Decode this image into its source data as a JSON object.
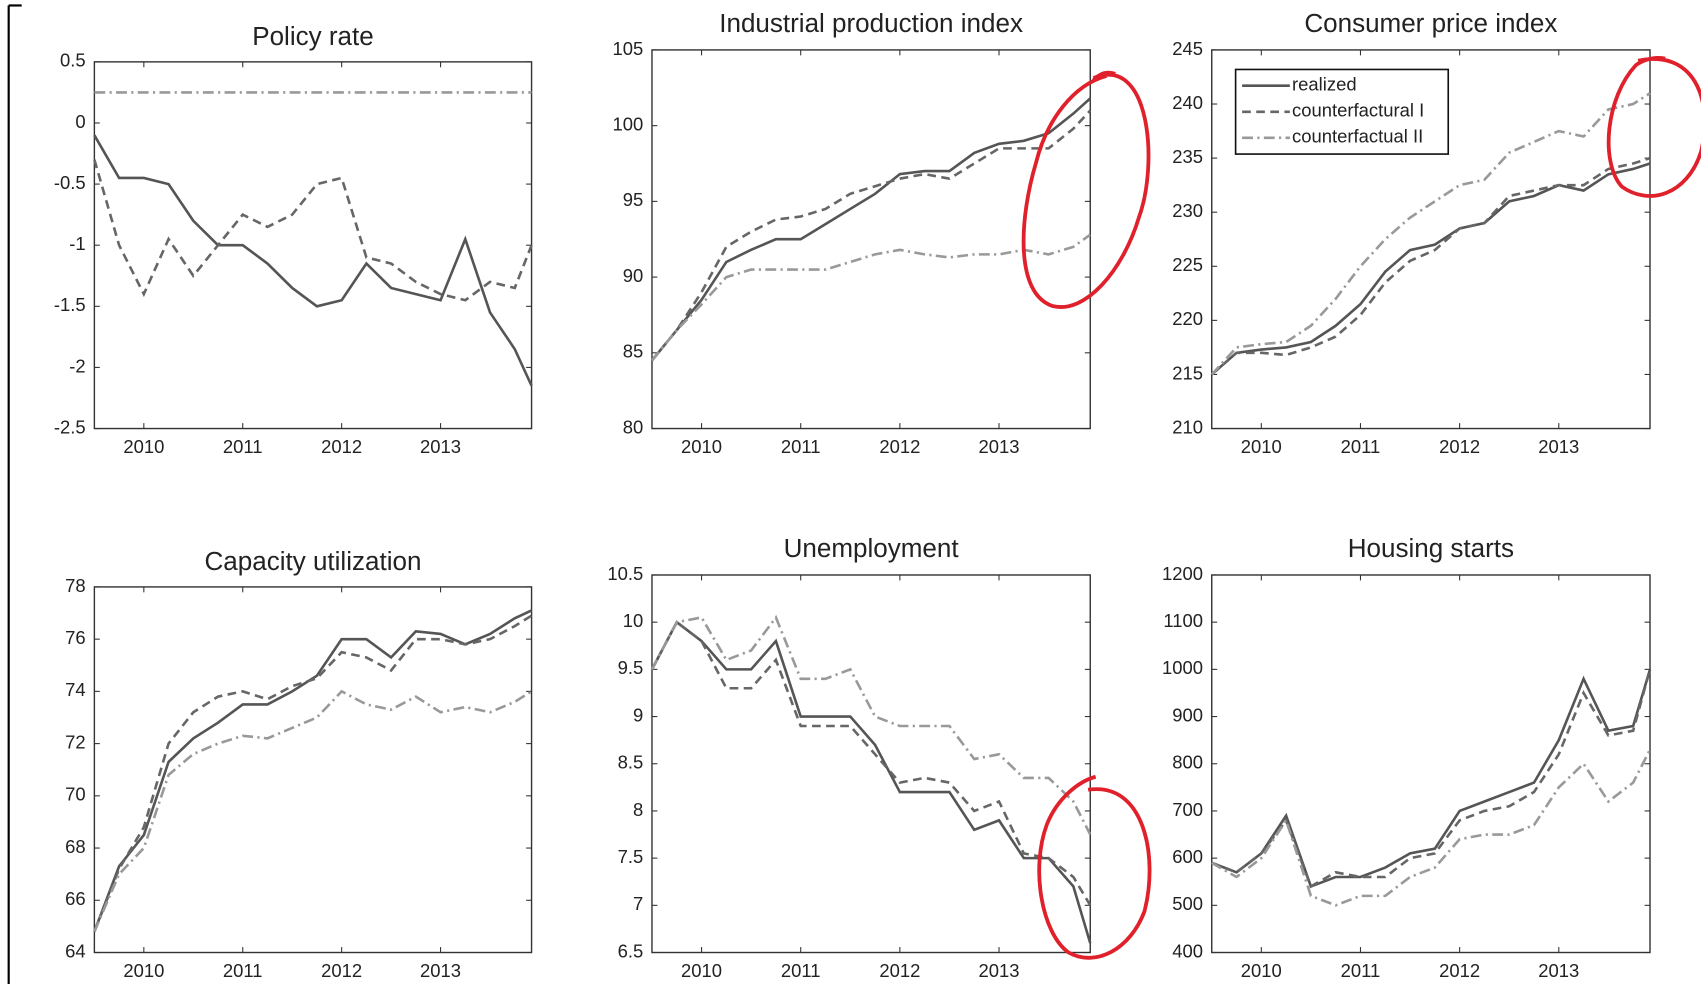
{
  "chart_data": [
    {
      "type": "line",
      "title": "Policy rate",
      "x": [
        2009.5,
        2009.75,
        2010,
        2010.25,
        2010.5,
        2010.75,
        2011,
        2011.25,
        2011.5,
        2011.75,
        2012,
        2012.25,
        2012.5,
        2012.75,
        2013,
        2013.25,
        2013.5,
        2013.75,
        2013.92
      ],
      "xlim": [
        2009.5,
        2013.92
      ],
      "xticks": [
        2010,
        2011,
        2012,
        2013
      ],
      "ylim": [
        -2.5,
        0.5
      ],
      "yticks": [
        -2.5,
        -2,
        -1.5,
        -1,
        -0.5,
        0,
        0.5
      ],
      "series": [
        {
          "color": "#555555",
          "dash": "solid",
          "values": [
            -0.1,
            -0.45,
            -0.45,
            -0.5,
            -0.8,
            -1.0,
            -1.0,
            -1.15,
            -1.35,
            -1.5,
            -1.45,
            -1.15,
            -1.35,
            -1.4,
            -1.45,
            -0.95,
            -1.55,
            -1.85,
            -2.15
          ]
        },
        {
          "color": "#666666",
          "dash": "dashed",
          "values": [
            -0.3,
            -1.0,
            -1.4,
            -0.95,
            -1.25,
            -1.0,
            -0.75,
            -0.85,
            -0.75,
            -0.5,
            -0.45,
            -1.1,
            -1.15,
            -1.3,
            -1.4,
            -1.45,
            -1.3,
            -1.35,
            -1.0
          ]
        },
        {
          "color": "#999999",
          "dash": "dashdot",
          "values": [
            0.25,
            0.25,
            0.25,
            0.25,
            0.25,
            0.25,
            0.25,
            0.25,
            0.25,
            0.25,
            0.25,
            0.25,
            0.25,
            0.25,
            0.25,
            0.25,
            0.25,
            0.25,
            0.25
          ]
        }
      ]
    },
    {
      "type": "line",
      "title": "Industrial production index",
      "x": [
        2009.5,
        2009.75,
        2010,
        2010.25,
        2010.5,
        2010.75,
        2011,
        2011.25,
        2011.5,
        2011.75,
        2012,
        2012.25,
        2012.5,
        2012.75,
        2013,
        2013.25,
        2013.5,
        2013.75,
        2013.92
      ],
      "xlim": [
        2009.5,
        2013.92
      ],
      "xticks": [
        2010,
        2011,
        2012,
        2013
      ],
      "ylim": [
        80,
        105
      ],
      "yticks": [
        80,
        85,
        90,
        95,
        100,
        105
      ],
      "series": [
        {
          "color": "#555555",
          "dash": "solid",
          "values": [
            84.5,
            86.5,
            88.5,
            91,
            91.8,
            92.5,
            92.5,
            93.5,
            94.5,
            95.5,
            96.8,
            97,
            97,
            98.2,
            98.8,
            99,
            99.5,
            100.8,
            101.8
          ]
        },
        {
          "color": "#666666",
          "dash": "dashed",
          "values": [
            84.5,
            86.5,
            89,
            92,
            93,
            93.8,
            94,
            94.5,
            95.5,
            96,
            96.5,
            96.8,
            96.5,
            97.5,
            98.5,
            98.5,
            98.5,
            99.8,
            101
          ]
        },
        {
          "color": "#999999",
          "dash": "dashdot",
          "values": [
            84.5,
            86.5,
            88.2,
            90,
            90.5,
            90.5,
            90.5,
            90.5,
            91,
            91.5,
            91.8,
            91.5,
            91.3,
            91.5,
            91.5,
            91.8,
            91.5,
            92,
            92.8
          ]
        }
      ]
    },
    {
      "type": "line",
      "title": "Consumer price index",
      "x": [
        2009.5,
        2009.75,
        2010,
        2010.25,
        2010.5,
        2010.75,
        2011,
        2011.25,
        2011.5,
        2011.75,
        2012,
        2012.25,
        2012.5,
        2012.75,
        2013,
        2013.25,
        2013.5,
        2013.75,
        2013.92
      ],
      "xlim": [
        2009.5,
        2013.92
      ],
      "xticks": [
        2010,
        2011,
        2012,
        2013
      ],
      "ylim": [
        210,
        245
      ],
      "yticks": [
        210,
        215,
        220,
        225,
        230,
        235,
        240,
        245
      ],
      "legend": "upper left",
      "series": [
        {
          "name": "realized",
          "color": "#555555",
          "dash": "solid",
          "values": [
            215,
            217,
            217.3,
            217.5,
            218,
            219.5,
            221.5,
            224.5,
            226.5,
            227,
            228.5,
            229,
            231,
            231.5,
            232.5,
            232,
            233.5,
            234,
            234.5
          ]
        },
        {
          "name": "counterfactural I",
          "color": "#666666",
          "dash": "dashed",
          "values": [
            215,
            217,
            217,
            216.8,
            217.5,
            218.5,
            220.5,
            223.5,
            225.5,
            226.5,
            228.5,
            229,
            231.5,
            232,
            232.5,
            232.5,
            234,
            234.5,
            235
          ]
        },
        {
          "name": "counterfactual II",
          "color": "#999999",
          "dash": "dashdot",
          "values": [
            215,
            217.5,
            217.8,
            218,
            219.5,
            222,
            225,
            227.5,
            229.5,
            231,
            232.5,
            233,
            235.5,
            236.5,
            237.5,
            237,
            239.5,
            240,
            241
          ]
        }
      ]
    },
    {
      "type": "line",
      "title": "Capacity utilization",
      "x": [
        2009.5,
        2009.75,
        2010,
        2010.25,
        2010.5,
        2010.75,
        2011,
        2011.25,
        2011.5,
        2011.75,
        2012,
        2012.25,
        2012.5,
        2012.75,
        2013,
        2013.25,
        2013.5,
        2013.75,
        2013.92
      ],
      "xlim": [
        2009.5,
        2013.92
      ],
      "xticks": [
        2010,
        2011,
        2012,
        2013
      ],
      "ylim": [
        64,
        78
      ],
      "yticks": [
        64,
        66,
        68,
        70,
        72,
        74,
        76,
        78
      ],
      "series": [
        {
          "color": "#555555",
          "dash": "solid",
          "values": [
            64.8,
            67.3,
            68.5,
            71.3,
            72.2,
            72.8,
            73.5,
            73.5,
            74,
            74.6,
            76,
            76,
            75.3,
            76.3,
            76.2,
            75.8,
            76.2,
            76.8,
            77.1
          ]
        },
        {
          "color": "#666666",
          "dash": "dashed",
          "values": [
            64.8,
            67.2,
            68.8,
            72,
            73.2,
            73.8,
            74,
            73.7,
            74.2,
            74.5,
            75.5,
            75.3,
            74.8,
            76,
            76,
            75.8,
            76,
            76.5,
            76.9
          ]
        },
        {
          "color": "#999999",
          "dash": "dashdot",
          "values": [
            64.8,
            67,
            68,
            70.8,
            71.6,
            72,
            72.3,
            72.2,
            72.6,
            73,
            74,
            73.5,
            73.3,
            73.8,
            73.2,
            73.4,
            73.2,
            73.6,
            74
          ]
        }
      ]
    },
    {
      "type": "line",
      "title": "Unemployment",
      "x": [
        2009.5,
        2009.75,
        2010,
        2010.25,
        2010.5,
        2010.75,
        2011,
        2011.25,
        2011.5,
        2011.75,
        2012,
        2012.25,
        2012.5,
        2012.75,
        2013,
        2013.25,
        2013.5,
        2013.75,
        2013.92
      ],
      "xlim": [
        2009.5,
        2013.92
      ],
      "xticks": [
        2010,
        2011,
        2012,
        2013
      ],
      "ylim": [
        6.5,
        10.5
      ],
      "yticks": [
        6.5,
        7,
        7.5,
        8,
        8.5,
        9,
        9.5,
        10,
        10.5
      ],
      "series": [
        {
          "color": "#555555",
          "dash": "solid",
          "values": [
            9.5,
            10,
            9.8,
            9.5,
            9.5,
            9.8,
            9.0,
            9.0,
            9.0,
            8.7,
            8.2,
            8.2,
            8.2,
            7.8,
            7.9,
            7.5,
            7.5,
            7.2,
            6.6
          ]
        },
        {
          "color": "#666666",
          "dash": "dashed",
          "values": [
            9.5,
            10,
            9.8,
            9.3,
            9.3,
            9.6,
            8.9,
            8.9,
            8.9,
            8.6,
            8.3,
            8.35,
            8.3,
            8.0,
            8.1,
            7.55,
            7.5,
            7.3,
            7.0
          ]
        },
        {
          "color": "#999999",
          "dash": "dashdot",
          "values": [
            9.5,
            10,
            10.05,
            9.6,
            9.7,
            10.05,
            9.4,
            9.4,
            9.5,
            9.0,
            8.9,
            8.9,
            8.9,
            8.55,
            8.6,
            8.35,
            8.35,
            8.1,
            7.75
          ]
        }
      ]
    },
    {
      "type": "line",
      "title": "Housing starts",
      "x": [
        2009.5,
        2009.75,
        2010,
        2010.25,
        2010.5,
        2010.75,
        2011,
        2011.25,
        2011.5,
        2011.75,
        2012,
        2012.25,
        2012.5,
        2012.75,
        2013,
        2013.25,
        2013.5,
        2013.75,
        2013.92
      ],
      "xlim": [
        2009.5,
        2013.92
      ],
      "xticks": [
        2010,
        2011,
        2012,
        2013
      ],
      "ylim": [
        400,
        1200
      ],
      "yticks": [
        400,
        500,
        600,
        700,
        800,
        900,
        1000,
        1100,
        1200
      ],
      "series": [
        {
          "color": "#555555",
          "dash": "solid",
          "values": [
            590,
            570,
            610,
            690,
            540,
            560,
            560,
            580,
            610,
            620,
            700,
            720,
            740,
            760,
            850,
            980,
            870,
            880,
            1000
          ]
        },
        {
          "color": "#666666",
          "dash": "dashed",
          "values": [
            590,
            570,
            610,
            680,
            540,
            570,
            560,
            560,
            600,
            610,
            680,
            700,
            710,
            740,
            820,
            950,
            860,
            870,
            1000
          ]
        },
        {
          "color": "#999999",
          "dash": "dashdot",
          "values": [
            590,
            560,
            600,
            680,
            520,
            500,
            520,
            520,
            560,
            580,
            640,
            650,
            650,
            670,
            750,
            800,
            720,
            760,
            830
          ]
        }
      ]
    }
  ]
}
